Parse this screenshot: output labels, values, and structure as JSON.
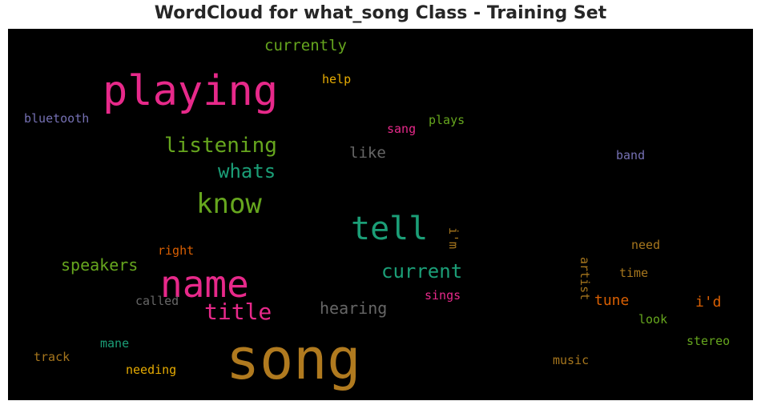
{
  "chart_data": {
    "type": "wordcloud",
    "title": "WordCloud for what_song Class - Training Set",
    "background": "#000000",
    "words": [
      {
        "text": "song",
        "color": "#b07a1f"
      },
      {
        "text": "playing",
        "color": "#e7298a"
      },
      {
        "text": "name",
        "color": "#e7298a"
      },
      {
        "text": "tell",
        "color": "#1b9e77"
      },
      {
        "text": "know",
        "color": "#66a61e"
      },
      {
        "text": "listening",
        "color": "#66a61e"
      },
      {
        "text": "whats",
        "color": "#1b9e77"
      },
      {
        "text": "title",
        "color": "#e7298a"
      },
      {
        "text": "current",
        "color": "#1b9e77"
      },
      {
        "text": "speakers",
        "color": "#66a61e"
      },
      {
        "text": "hearing",
        "color": "#666666"
      },
      {
        "text": "currently",
        "color": "#66a61e"
      },
      {
        "text": "like",
        "color": "#666666"
      },
      {
        "text": "tune",
        "color": "#d95f02"
      },
      {
        "text": "i'd",
        "color": "#d95f02"
      },
      {
        "text": "bluetooth",
        "color": "#7570b3"
      },
      {
        "text": "help",
        "color": "#e6ab02"
      },
      {
        "text": "plays",
        "color": "#66a61e"
      },
      {
        "text": "sang",
        "color": "#e7298a"
      },
      {
        "text": "band",
        "color": "#7570b3"
      },
      {
        "text": "i'm",
        "color": "#a6761d"
      },
      {
        "text": "right",
        "color": "#d95f02"
      },
      {
        "text": "need",
        "color": "#a6761d"
      },
      {
        "text": "artist",
        "color": "#a6761d"
      },
      {
        "text": "time",
        "color": "#a6761d"
      },
      {
        "text": "called",
        "color": "#666666"
      },
      {
        "text": "sings",
        "color": "#e7298a"
      },
      {
        "text": "look",
        "color": "#66a61e"
      },
      {
        "text": "stereo",
        "color": "#66a61e"
      },
      {
        "text": "mane",
        "color": "#1b9e77"
      },
      {
        "text": "track",
        "color": "#a6761d"
      },
      {
        "text": "needing",
        "color": "#e6ab02"
      },
      {
        "text": "music",
        "color": "#a6761d"
      }
    ]
  }
}
